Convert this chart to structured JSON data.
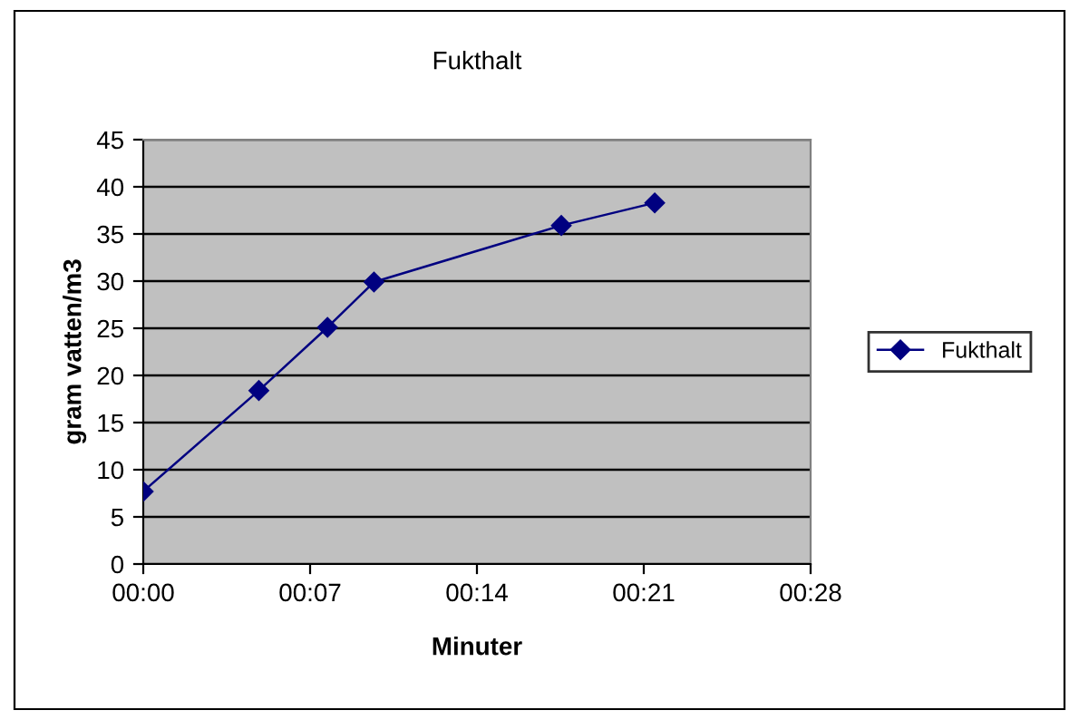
{
  "chart_data": {
    "type": "line",
    "title": "Fukthalt",
    "xlabel": "Minuter",
    "ylabel": "gram vatten/m3",
    "x": [
      0,
      4.85,
      7.73,
      9.68,
      17.54,
      21.46
    ],
    "series": [
      {
        "name": "Fukthalt",
        "color": "#000080",
        "values": [
          7.7,
          18.4,
          25.1,
          29.9,
          35.9,
          38.3
        ]
      }
    ],
    "xlim": [
      0,
      28
    ],
    "xticks": [
      {
        "value": 0,
        "label": "00:00"
      },
      {
        "value": 7,
        "label": "00:07"
      },
      {
        "value": 14,
        "label": "00:14"
      },
      {
        "value": 21,
        "label": "00:21"
      },
      {
        "value": 28,
        "label": "00:28"
      }
    ],
    "ylim": [
      0,
      45
    ],
    "yticks": [
      0,
      5,
      10,
      15,
      20,
      25,
      30,
      35,
      40,
      45
    ],
    "grid": "y",
    "legend": "right",
    "marker": "diamond",
    "line_style": "solid"
  }
}
